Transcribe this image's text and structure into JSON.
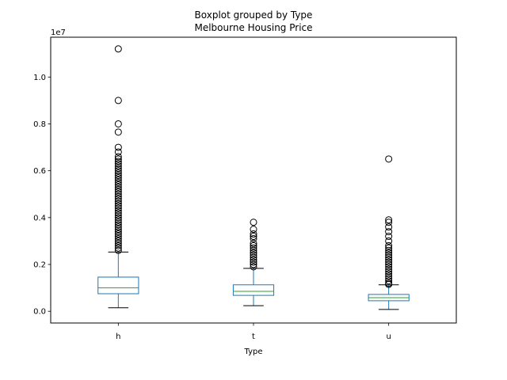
{
  "chart_data": {
    "type": "boxplot",
    "suptitle": "Boxplot grouped by Type",
    "title": "Melbourne Housing Price",
    "xlabel": "Type",
    "ylabel": "",
    "y_offset_label": "1e7",
    "scale": 10000000,
    "ylim": [
      -0.05,
      1.17
    ],
    "yticks": [
      0.0,
      0.2,
      0.4,
      0.6,
      0.8,
      1.0
    ],
    "ytick_labels": [
      "0.0",
      "0.2",
      "0.4",
      "0.6",
      "0.8",
      "1.0"
    ],
    "categories": [
      "h",
      "t",
      "u"
    ],
    "grid": false,
    "colors": {
      "box": "#1f77b4",
      "median": "#2ca02c",
      "whisker": "#1f77b4",
      "cap": "#000000",
      "flier": "#000000"
    },
    "boxes": [
      {
        "name": "h",
        "whislo": 0.015,
        "q1": 0.075,
        "median": 0.1,
        "q3": 0.146,
        "whishi": 0.253,
        "fliers": [
          0.26,
          0.27,
          0.28,
          0.29,
          0.3,
          0.31,
          0.32,
          0.33,
          0.34,
          0.35,
          0.36,
          0.37,
          0.38,
          0.39,
          0.4,
          0.41,
          0.42,
          0.43,
          0.44,
          0.45,
          0.46,
          0.47,
          0.48,
          0.49,
          0.5,
          0.51,
          0.52,
          0.53,
          0.54,
          0.55,
          0.56,
          0.57,
          0.58,
          0.59,
          0.6,
          0.61,
          0.62,
          0.63,
          0.64,
          0.65,
          0.66,
          0.68,
          0.7,
          0.765,
          0.8,
          0.9,
          1.12
        ]
      },
      {
        "name": "t",
        "whislo": 0.024,
        "q1": 0.068,
        "median": 0.085,
        "q3": 0.113,
        "whishi": 0.183,
        "fliers": [
          0.19,
          0.2,
          0.21,
          0.22,
          0.23,
          0.24,
          0.25,
          0.26,
          0.27,
          0.28,
          0.29,
          0.31,
          0.32,
          0.33,
          0.35,
          0.38
        ]
      },
      {
        "name": "u",
        "whislo": 0.008,
        "q1": 0.045,
        "median": 0.058,
        "q3": 0.072,
        "whishi": 0.113,
        "fliers": [
          0.115,
          0.12,
          0.13,
          0.14,
          0.15,
          0.16,
          0.17,
          0.18,
          0.19,
          0.2,
          0.21,
          0.22,
          0.23,
          0.24,
          0.25,
          0.26,
          0.27,
          0.28,
          0.3,
          0.32,
          0.34,
          0.36,
          0.38,
          0.39,
          0.65
        ]
      }
    ]
  }
}
